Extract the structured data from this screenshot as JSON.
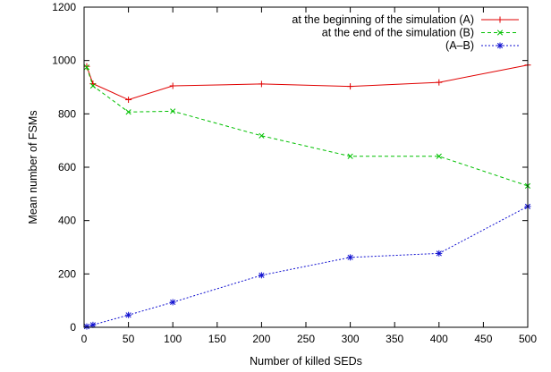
{
  "chart_data": {
    "type": "line",
    "title": "",
    "xlabel": "Number of killed SEDs",
    "ylabel": "Mean number of FSMs",
    "xlim": [
      0,
      500
    ],
    "ylim": [
      0,
      1200
    ],
    "xticks": [
      0,
      50,
      100,
      150,
      200,
      250,
      300,
      350,
      400,
      450,
      500
    ],
    "yticks": [
      0,
      200,
      400,
      600,
      800,
      1000,
      1200
    ],
    "grid": false,
    "legend_position": "top-right",
    "series": [
      {
        "name": "at the beginning of the simulation (A)",
        "color": "#e00000",
        "dash": "solid",
        "marker": "plus",
        "x": [
          3,
          10,
          50,
          100,
          200,
          300,
          400,
          500
        ],
        "y": [
          978,
          913,
          853,
          905,
          912,
          903,
          918,
          983
        ]
      },
      {
        "name": "at the end of the simulation (B)",
        "color": "#00c000",
        "dash": "dashed",
        "marker": "cross",
        "x": [
          3,
          10,
          50,
          100,
          200,
          300,
          400,
          500
        ],
        "y": [
          975,
          905,
          807,
          810,
          718,
          641,
          641,
          530
        ]
      },
      {
        "name": "(A–B)",
        "color": "#1010d0",
        "dash": "dotted",
        "marker": "star",
        "x": [
          3,
          10,
          50,
          100,
          200,
          300,
          400,
          500
        ],
        "y": [
          3,
          9,
          46,
          94,
          195,
          262,
          277,
          453
        ]
      }
    ]
  }
}
